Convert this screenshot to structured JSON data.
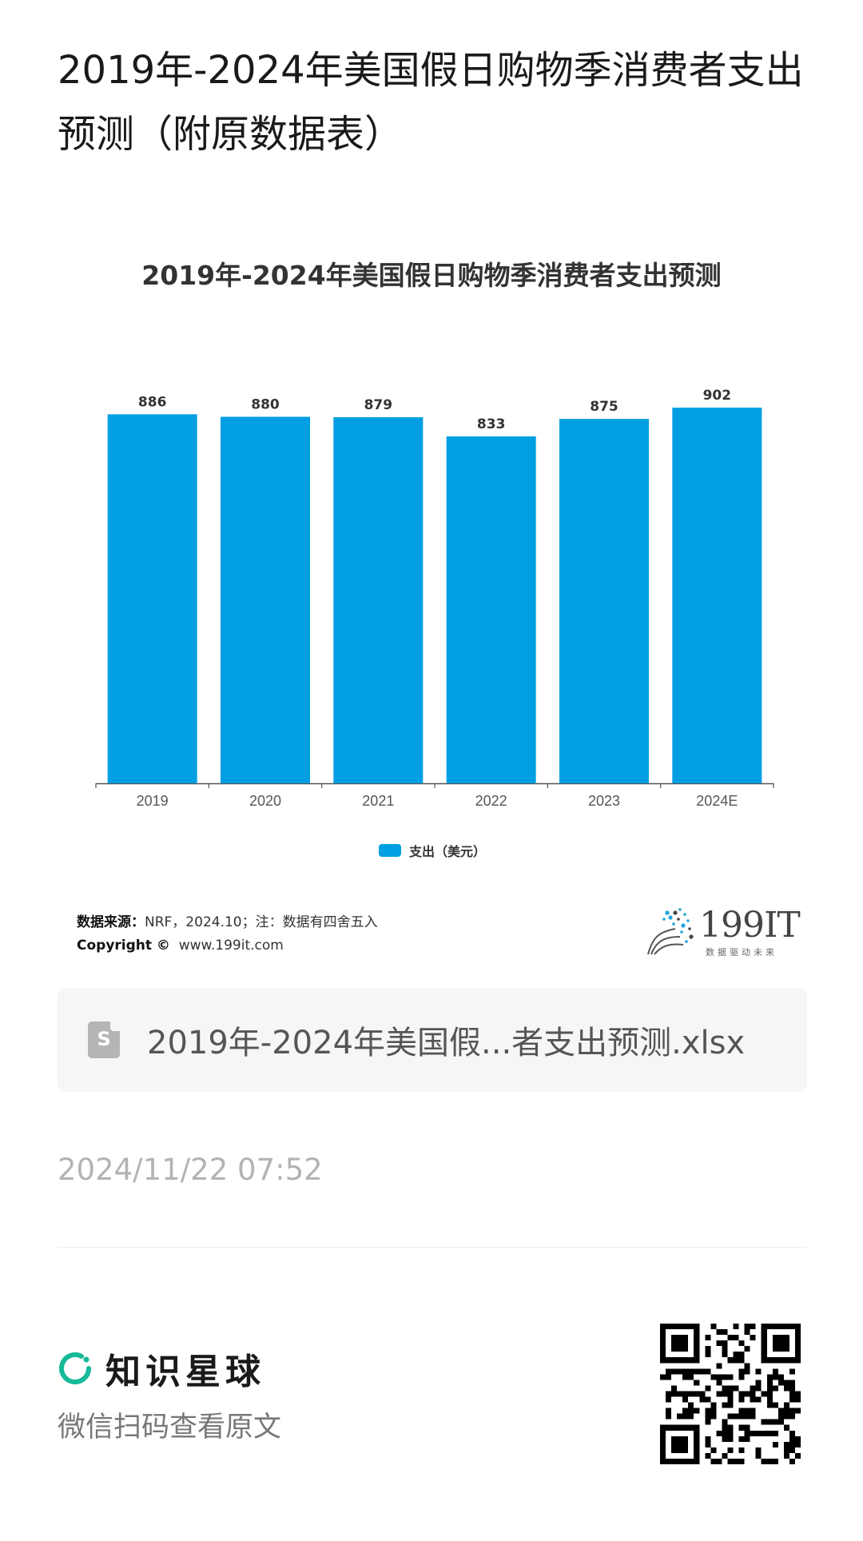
{
  "page": {
    "title": "2019年-2024年美国假日购物季消费者支出预测（附原数据表）"
  },
  "chart_data": {
    "type": "bar",
    "title": "2019年-2024年美国假日购物季消费者支出预测",
    "categories": [
      "2019",
      "2020",
      "2021",
      "2022",
      "2023",
      "2024E"
    ],
    "series": [
      {
        "name": "支出（美元）",
        "values": [
          886,
          880,
          879,
          833,
          875,
          902
        ],
        "color": "#009fe3"
      }
    ],
    "data_labels": [
      "886",
      "880",
      "879",
      "833",
      "875",
      "902"
    ],
    "ylim": [
      0,
      902
    ],
    "grid": false,
    "legend_position": "bottom"
  },
  "source": {
    "label": "数据来源：",
    "text": "NRF，2024.10；注：数据有四舍五入",
    "copyright_label": "Copyright ©",
    "copyright_url": "www.199it.com"
  },
  "brand": {
    "name": "199IT",
    "tagline": "数据驱动未来",
    "dot_color": "#1fa3d9"
  },
  "attachment": {
    "file_name": "2019年-2024年美国假...者支出预测.xlsx",
    "icon": "spreadsheet-file-icon",
    "icon_letter": "S"
  },
  "timestamp": "2024/11/22 07:52",
  "footer": {
    "planet_name": "知识星球",
    "planet_color": "#16b998",
    "scan_text": "微信扫码查看原文",
    "qr_icon": "qr-code-icon"
  }
}
